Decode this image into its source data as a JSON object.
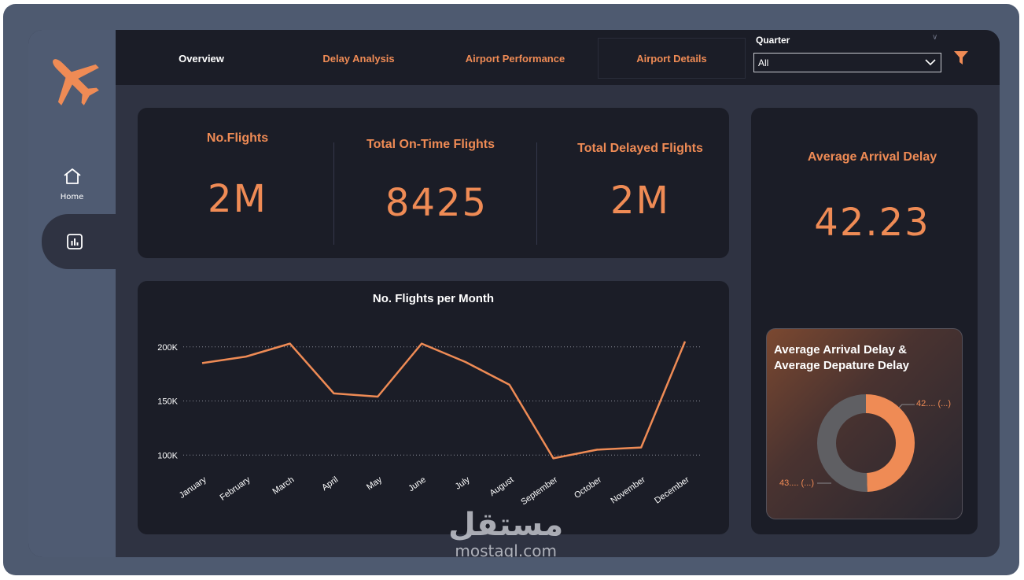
{
  "tabs": [
    {
      "label": "Overview",
      "active": true
    },
    {
      "label": "Delay Analysis",
      "active": false
    },
    {
      "label": "Airport Performance",
      "active": false
    },
    {
      "label": "Airport Details",
      "active": false
    }
  ],
  "filter": {
    "label": "Quarter",
    "value": "All"
  },
  "sidebar": {
    "home_label": "Home"
  },
  "kpis": {
    "flights": {
      "title": "No.Flights",
      "value": "2M"
    },
    "on_time": {
      "title": "Total On-Time Flights",
      "value": "8425"
    },
    "delayed": {
      "title": "Total Delayed Flights",
      "value": "2M"
    },
    "arrival_delay": {
      "title": "Average Arrival Delay",
      "value": "42.23"
    }
  },
  "chart_data": [
    {
      "type": "line",
      "title": "No. Flights per Month",
      "categories": [
        "January",
        "February",
        "March",
        "April",
        "May",
        "June",
        "July",
        "August",
        "September",
        "October",
        "November",
        "December"
      ],
      "values": [
        185000,
        191000,
        203000,
        157000,
        154000,
        203000,
        186000,
        165000,
        97000,
        105000,
        107000,
        205000
      ],
      "yticks": [
        100000,
        150000,
        200000
      ],
      "ytick_labels": [
        "100K",
        "150K",
        "200K"
      ],
      "ylim": [
        90000,
        210000
      ],
      "grid": true,
      "color": "#ef8b55"
    },
    {
      "type": "pie",
      "title": "Average Arrival Delay &\nAverage Depature Delay",
      "labels": [
        "42.... (...)",
        "43.... (...)"
      ],
      "values": [
        42.23,
        43.0
      ],
      "colors": [
        "#ef8b55",
        "#5f5f63"
      ]
    }
  ],
  "watermark": {
    "arabic": "مستقل",
    "latin": "mostaql.com"
  }
}
